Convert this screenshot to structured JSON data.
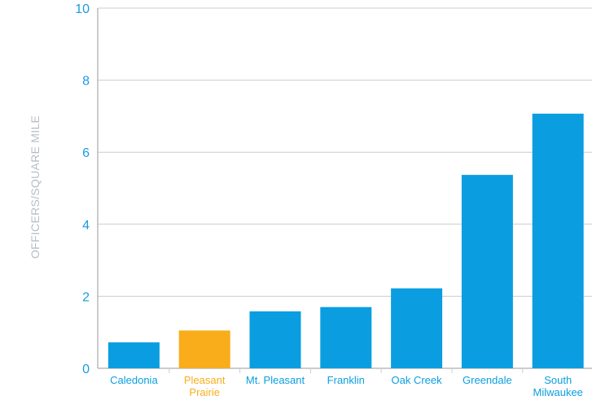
{
  "chart_data": {
    "type": "bar",
    "title": "",
    "xlabel": "",
    "ylabel": "OFFICERS/SQUARE MILE",
    "ylim": [
      0,
      10
    ],
    "yticks": [
      0,
      2,
      4,
      6,
      8,
      10
    ],
    "grid": true,
    "categories": [
      {
        "lines": [
          "Caledonia"
        ]
      },
      {
        "lines": [
          "Pleasant",
          "Prairie"
        ]
      },
      {
        "lines": [
          "Mt. Pleasant"
        ]
      },
      {
        "lines": [
          "Franklin"
        ]
      },
      {
        "lines": [
          "Oak Creek"
        ]
      },
      {
        "lines": [
          "Greendale"
        ]
      },
      {
        "lines": [
          "South",
          "Milwaukee"
        ]
      }
    ],
    "values": [
      0.72,
      1.05,
      1.58,
      1.7,
      2.22,
      5.37,
      7.07
    ],
    "colors": {
      "default": "#0a9ee0",
      "highlight": "#f9ad1a",
      "grid": "#cccccc",
      "axis": "#999999"
    },
    "highlight_index": 1
  }
}
